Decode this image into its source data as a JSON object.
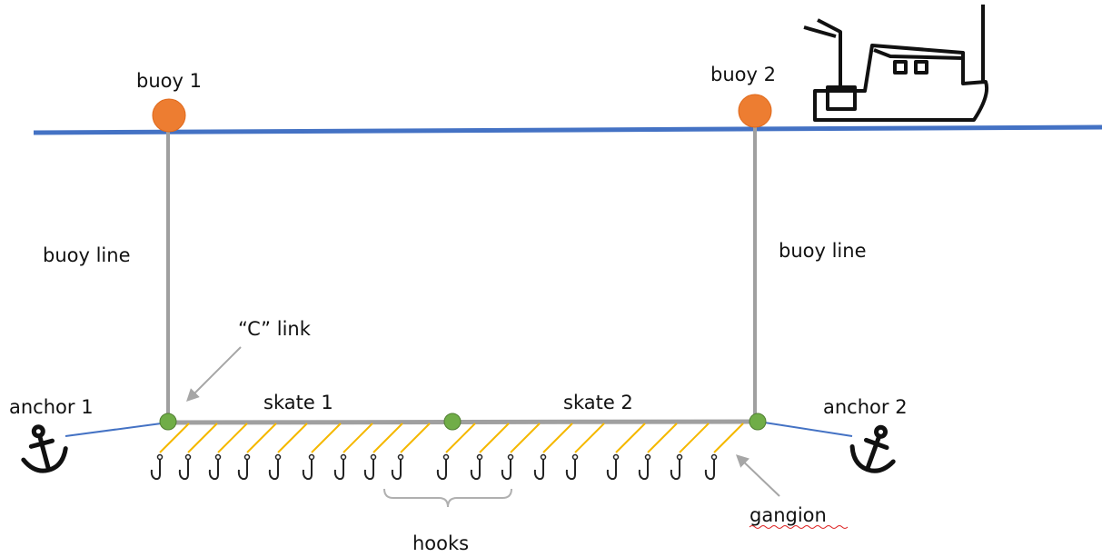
{
  "labels": {
    "buoy_1": "buoy 1",
    "buoy_2": "buoy 2",
    "buoy_line_left": "buoy line",
    "buoy_line_right": "buoy line",
    "c_link": "“C” link",
    "skate_1": "skate 1",
    "skate_2": "skate 2",
    "anchor_1": "anchor 1",
    "anchor_2": "anchor 2",
    "hooks": "hooks",
    "gangion": "gangion"
  }
}
